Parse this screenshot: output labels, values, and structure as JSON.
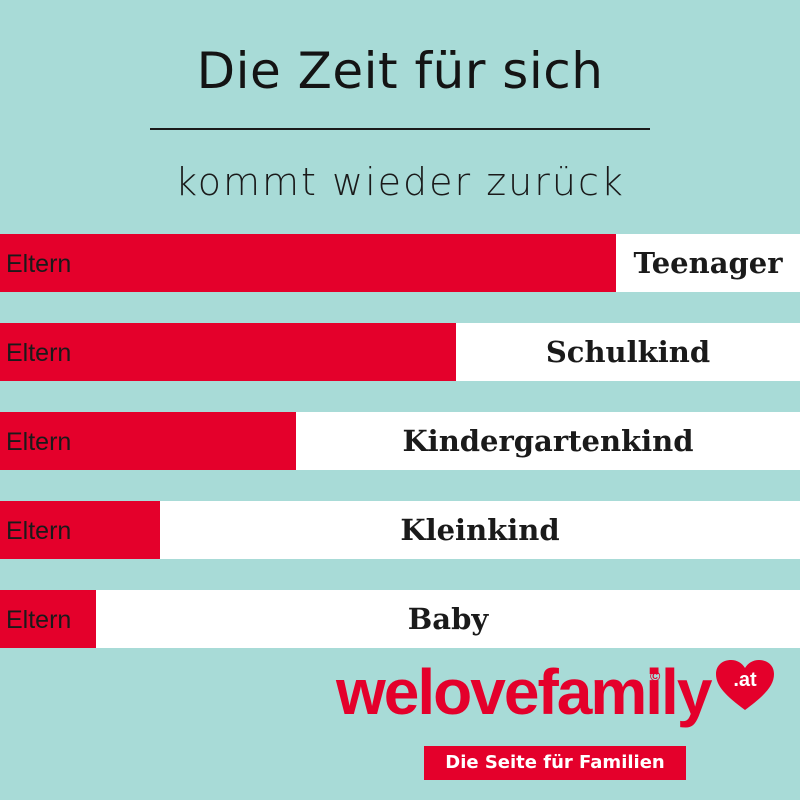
{
  "header": {
    "title": "Die Zeit für sich",
    "subtitle": "kommt wieder zurück"
  },
  "chart_data": {
    "type": "bar",
    "orientation": "horizontal-stacked",
    "parent_label": "Eltern",
    "categories": [
      "Teenager",
      "Schulkind",
      "Kindergartenkind",
      "Kleinkind",
      "Baby"
    ],
    "eltern_share": [
      0.77,
      0.57,
      0.37,
      0.2,
      0.12
    ],
    "colors": {
      "eltern": "#e4002b",
      "child": "#ffffff"
    }
  },
  "logo": {
    "word": "welovefamily",
    "copyright": "©",
    "domain": ".at",
    "tagline": "Die Seite für Familien"
  },
  "colors": {
    "background": "#a8dbd7",
    "accent": "#e4002b"
  }
}
